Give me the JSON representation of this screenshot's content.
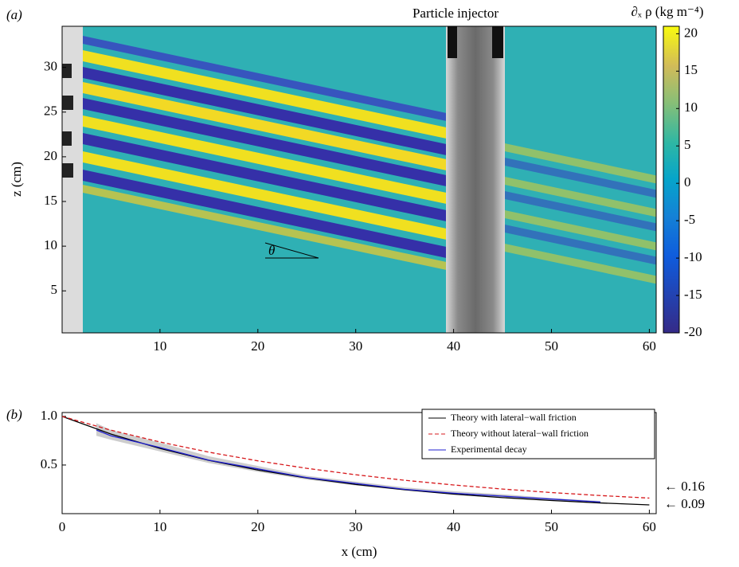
{
  "chart_data": [
    {
      "type": "image",
      "panel_label": "(a)",
      "ylabel": "z (cm)",
      "annotation": "Particle injector",
      "angle_label": "θ",
      "xlim": [
        0,
        60.7
      ],
      "xticks": [
        10,
        20,
        30,
        40,
        50,
        60
      ],
      "ylim": [
        0.3,
        34.6
      ],
      "yticks": [
        5,
        10,
        15,
        20,
        25,
        30
      ],
      "colorbar": {
        "label": "∂ₓ ρ (kg m⁻⁴)",
        "lim": [
          -20,
          21
        ],
        "ticks": [
          -20,
          -15,
          -10,
          -5,
          0,
          5,
          10,
          15,
          20
        ]
      }
    },
    {
      "type": "line",
      "panel_label": "(b)",
      "xlabel": "x (cm)",
      "xlim": [
        0,
        60.7
      ],
      "xticks": [
        0,
        10,
        20,
        30,
        40,
        50,
        60
      ],
      "ylim": [
        0,
        1.04
      ],
      "yticks": [
        0.5,
        {
          "value": 1,
          "label": "1.0"
        }
      ],
      "legend": "upper right",
      "annotations": [
        "← 0.16",
        "← 0.09"
      ],
      "band": {
        "color": "#c8c8c8",
        "x": [
          3.5,
          5,
          10,
          15,
          20,
          25,
          30,
          35,
          40,
          45,
          50,
          55
        ],
        "lower": [
          0.8,
          0.76,
          0.64,
          0.52,
          0.43,
          0.35,
          0.29,
          0.24,
          0.2,
          0.17,
          0.14,
          0.11
        ],
        "upper": [
          0.93,
          0.86,
          0.73,
          0.59,
          0.49,
          0.39,
          0.33,
          0.27,
          0.23,
          0.2,
          0.16,
          0.13
        ]
      },
      "series": [
        {
          "name": "Theory with lateral−wall friction",
          "color": "#000000",
          "dash": false,
          "x": [
            0,
            5,
            10,
            15,
            20,
            25,
            30,
            35,
            40,
            45,
            50,
            55,
            60
          ],
          "values": [
            1,
            0.818,
            0.67,
            0.548,
            0.448,
            0.367,
            0.3,
            0.246,
            0.201,
            0.165,
            0.135,
            0.11,
            0.09
          ]
        },
        {
          "name": "Theory without lateral−wall friction",
          "color": "#d7191c",
          "dash": true,
          "x": [
            0,
            5,
            10,
            15,
            20,
            25,
            30,
            35,
            40,
            45,
            50,
            55,
            60
          ],
          "values": [
            1,
            0.858,
            0.737,
            0.632,
            0.543,
            0.466,
            0.4,
            0.343,
            0.295,
            0.253,
            0.217,
            0.186,
            0.16
          ]
        },
        {
          "name": "Experimental decay",
          "color": "#1f1fd0",
          "dash": false,
          "x": [
            3.5,
            5,
            10,
            15,
            20,
            25,
            30,
            35,
            40,
            45,
            50,
            55
          ],
          "values": [
            0.86,
            0.8,
            0.68,
            0.55,
            0.46,
            0.37,
            0.31,
            0.25,
            0.21,
            0.18,
            0.15,
            0.12
          ]
        }
      ]
    }
  ]
}
